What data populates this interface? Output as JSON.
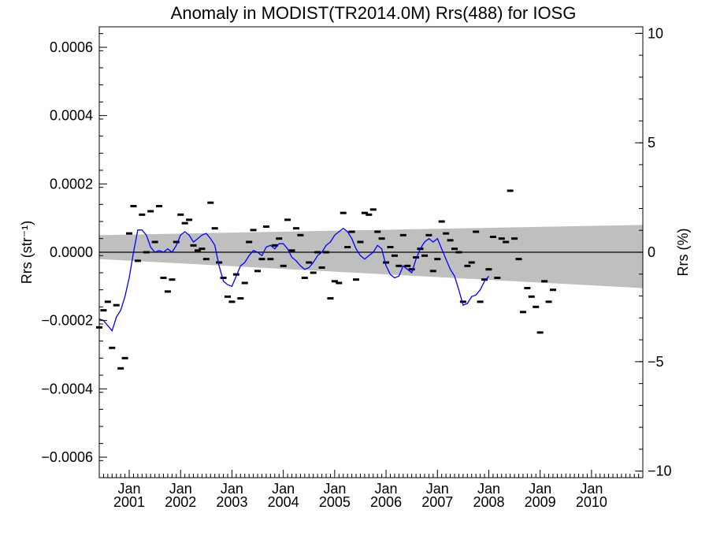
{
  "chart_data": {
    "type": "scatter",
    "title": "Anomaly in MODIST(TR2014.0M) Rrs(488) for IOSG",
    "ylabel_left": "Rrs (str⁻¹)",
    "ylabel_right": "Rrs (%)",
    "ylim": [
      -0.00066,
      0.00066
    ],
    "ylim_right": [
      -10.3,
      10.3
    ],
    "xlim": [
      "2000-06-01",
      "2010-12-31"
    ],
    "grid": false,
    "y_ticks_left": [
      -0.0006,
      -0.0004,
      -0.0002,
      0.0,
      0.0002,
      0.0004,
      0.0006
    ],
    "y_tick_labels_left": [
      "−0.0006",
      "−0.0004",
      "−0.0002",
      "0.0000",
      "0.0002",
      "0.0004",
      "0.0006"
    ],
    "y_ticks_right": [
      -10,
      -5,
      0,
      5,
      10
    ],
    "y_tick_labels_right": [
      "−10",
      "−5",
      "0",
      "5",
      "10"
    ],
    "x_ticks": [
      {
        "month": "Jan",
        "year": "2001",
        "date": "2001-01-01"
      },
      {
        "month": "Jan",
        "year": "2002",
        "date": "2002-01-01"
      },
      {
        "month": "Jan",
        "year": "2003",
        "date": "2003-01-01"
      },
      {
        "month": "Jan",
        "year": "2004",
        "date": "2004-01-01"
      },
      {
        "month": "Jan",
        "year": "2005",
        "date": "2005-01-01"
      },
      {
        "month": "Jan",
        "year": "2006",
        "date": "2006-01-01"
      },
      {
        "month": "Jan",
        "year": "2007",
        "date": "2007-01-01"
      },
      {
        "month": "Jan",
        "year": "2008",
        "date": "2008-01-01"
      },
      {
        "month": "Jan",
        "year": "2009",
        "date": "2009-01-01"
      },
      {
        "month": "Jan",
        "year": "2010",
        "date": "2010-01-01"
      }
    ],
    "band": {
      "x": [
        "2000-06-01",
        "2010-12-31"
      ],
      "upper": [
        5e-05,
        8e-05
      ],
      "lower": [
        -2e-05,
        -0.000105
      ],
      "color": "#bfbfbf"
    },
    "zero_line": 0,
    "series": [
      {
        "style": "marker",
        "color": "#000000",
        "points": [
          [
            "2000-06",
            -0.00022
          ],
          [
            "2000-07",
            -0.00017
          ],
          [
            "2000-08",
            -0.000145
          ],
          [
            "2000-09",
            -0.00028
          ],
          [
            "2000-10",
            -0.000155
          ],
          [
            "2000-11",
            -0.00034
          ],
          [
            "2000-12",
            -0.00031
          ],
          [
            "2001-01",
            5.5e-05
          ],
          [
            "2001-02",
            0.000135
          ],
          [
            "2001-03",
            -2.5e-05
          ],
          [
            "2001-04",
            0.00011
          ],
          [
            "2001-05",
            0.0
          ],
          [
            "2001-06",
            0.00012
          ],
          [
            "2001-07",
            3e-05
          ],
          [
            "2001-08",
            0.000135
          ],
          [
            "2001-09",
            -7.5e-05
          ],
          [
            "2001-10",
            -0.000115
          ],
          [
            "2001-11",
            -8e-05
          ],
          [
            "2001-12",
            3e-05
          ],
          [
            "2002-01",
            0.00011
          ],
          [
            "2002-02",
            8.5e-05
          ],
          [
            "2002-03",
            9.5e-05
          ],
          [
            "2002-04",
            2e-05
          ],
          [
            "2002-05",
            5e-06
          ],
          [
            "2002-06",
            1e-05
          ],
          [
            "2002-07",
            -2e-05
          ],
          [
            "2002-08",
            0.000145
          ],
          [
            "2002-09",
            7e-05
          ],
          [
            "2002-10",
            -3e-05
          ],
          [
            "2002-11",
            -7.5e-05
          ],
          [
            "2002-12",
            -0.00013
          ],
          [
            "2003-01",
            -0.000145
          ],
          [
            "2003-02",
            -6.5e-05
          ],
          [
            "2003-03",
            -0.000135
          ],
          [
            "2003-04",
            -9e-05
          ],
          [
            "2003-05",
            3e-05
          ],
          [
            "2003-06",
            6.5e-05
          ],
          [
            "2003-07",
            -5.5e-05
          ],
          [
            "2003-08",
            -2e-05
          ],
          [
            "2003-09",
            7.5e-05
          ],
          [
            "2003-10",
            -2e-05
          ],
          [
            "2003-11",
            2e-05
          ],
          [
            "2003-12",
            4e-05
          ],
          [
            "2004-01",
            -4e-05
          ],
          [
            "2004-02",
            9.5e-05
          ],
          [
            "2004-03",
            5e-06
          ],
          [
            "2004-04",
            7e-05
          ],
          [
            "2004-05",
            5e-05
          ],
          [
            "2004-06",
            -7.5e-05
          ],
          [
            "2004-07",
            -3e-05
          ],
          [
            "2004-08",
            -6e-05
          ],
          [
            "2004-09",
            0.0
          ],
          [
            "2004-10",
            -4.5e-05
          ],
          [
            "2004-11",
            0.0
          ],
          [
            "2004-12",
            -0.000135
          ],
          [
            "2005-01",
            -8.5e-05
          ],
          [
            "2005-02",
            -9e-05
          ],
          [
            "2005-03",
            0.000115
          ],
          [
            "2005-04",
            1.5e-05
          ],
          [
            "2005-05",
            6e-05
          ],
          [
            "2005-06",
            -8e-05
          ],
          [
            "2005-07",
            3e-05
          ],
          [
            "2005-08",
            0.000115
          ],
          [
            "2005-09",
            0.00011
          ],
          [
            "2005-10",
            0.000125
          ],
          [
            "2005-11",
            6e-05
          ],
          [
            "2005-12",
            4e-05
          ],
          [
            "2006-01",
            -3e-05
          ],
          [
            "2006-02",
            1.5e-05
          ],
          [
            "2006-03",
            -1e-05
          ],
          [
            "2006-04",
            -4e-05
          ],
          [
            "2006-05",
            5e-05
          ],
          [
            "2006-06",
            -4e-05
          ],
          [
            "2006-07",
            -5e-05
          ],
          [
            "2006-08",
            -1.5e-05
          ],
          [
            "2006-09",
            1e-05
          ],
          [
            "2006-10",
            -1e-05
          ],
          [
            "2006-11",
            5e-05
          ],
          [
            "2006-12",
            -5.5e-05
          ],
          [
            "2007-01",
            -2e-05
          ],
          [
            "2007-02",
            9e-05
          ],
          [
            "2007-03",
            5.5e-05
          ],
          [
            "2007-04",
            3.5e-05
          ],
          [
            "2007-05",
            1e-05
          ],
          [
            "2007-06",
            0.0
          ],
          [
            "2007-07",
            -0.000145
          ],
          [
            "2007-08",
            -4e-05
          ],
          [
            "2007-09",
            -3e-05
          ],
          [
            "2007-10",
            6e-05
          ],
          [
            "2007-11",
            -0.000145
          ],
          [
            "2007-12",
            -8e-05
          ],
          [
            "2008-01",
            -5e-05
          ],
          [
            "2008-02",
            4.5e-05
          ],
          [
            "2008-03",
            -7.5e-05
          ],
          [
            "2008-04",
            4e-05
          ],
          [
            "2008-05",
            3e-05
          ],
          [
            "2008-06",
            0.00018
          ],
          [
            "2008-07",
            4e-05
          ],
          [
            "2008-08",
            -2e-05
          ],
          [
            "2008-09",
            -0.000175
          ],
          [
            "2008-10",
            -0.000105
          ],
          [
            "2008-11",
            -0.00013
          ],
          [
            "2008-12",
            -0.00016
          ],
          [
            "2009-01",
            -0.000235
          ],
          [
            "2009-02",
            -8.5e-05
          ],
          [
            "2009-03",
            -0.000145
          ],
          [
            "2009-04",
            -0.00011
          ]
        ]
      },
      {
        "style": "line",
        "color": "#0000ff",
        "points": [
          [
            "2000-06",
            -0.000195
          ],
          [
            "2000-07",
            -0.0002
          ],
          [
            "2000-08",
            -0.000215
          ],
          [
            "2000-09",
            -0.00023
          ],
          [
            "2000-10",
            -0.00019
          ],
          [
            "2000-11",
            -0.00017
          ],
          [
            "2000-12",
            -0.00013
          ],
          [
            "2001-01",
            -7.5e-05
          ],
          [
            "2001-02",
            0.0
          ],
          [
            "2001-03",
            6.5e-05
          ],
          [
            "2001-04",
            6.5e-05
          ],
          [
            "2001-05",
            5e-05
          ],
          [
            "2001-06",
            1.5e-05
          ],
          [
            "2001-07",
            0.0
          ],
          [
            "2001-08",
            5e-06
          ],
          [
            "2001-09",
            0.0
          ],
          [
            "2001-10",
            1e-05
          ],
          [
            "2001-11",
            0.0
          ],
          [
            "2001-12",
            2e-05
          ],
          [
            "2002-01",
            5e-05
          ],
          [
            "2002-02",
            6e-05
          ],
          [
            "2002-03",
            5e-05
          ],
          [
            "2002-04",
            3e-05
          ],
          [
            "2002-05",
            4e-05
          ],
          [
            "2002-06",
            5e-05
          ],
          [
            "2002-07",
            5.5e-05
          ],
          [
            "2002-08",
            4e-05
          ],
          [
            "2002-09",
            2e-05
          ],
          [
            "2002-10",
            -4e-05
          ],
          [
            "2002-11",
            -8.5e-05
          ],
          [
            "2002-12",
            -9.5e-05
          ],
          [
            "2003-01",
            -0.0001
          ],
          [
            "2003-02",
            -7e-05
          ],
          [
            "2003-03",
            -4e-05
          ],
          [
            "2003-04",
            -3e-05
          ],
          [
            "2003-05",
            -1e-05
          ],
          [
            "2003-06",
            5e-06
          ],
          [
            "2003-07",
            0.0
          ],
          [
            "2003-08",
            -1e-05
          ],
          [
            "2003-09",
            1.5e-05
          ],
          [
            "2003-10",
            2e-05
          ],
          [
            "2003-11",
            1e-05
          ],
          [
            "2003-12",
            2.5e-05
          ],
          [
            "2004-01",
            2.5e-05
          ],
          [
            "2004-02",
            1e-05
          ],
          [
            "2004-03",
            -1.5e-05
          ],
          [
            "2004-04",
            -2.5e-05
          ],
          [
            "2004-05",
            -4e-05
          ],
          [
            "2004-06",
            -5e-05
          ],
          [
            "2004-07",
            -4.5e-05
          ],
          [
            "2004-08",
            -3e-05
          ],
          [
            "2004-09",
            -1e-05
          ],
          [
            "2004-10",
            0.0
          ],
          [
            "2004-11",
            2e-05
          ],
          [
            "2004-12",
            3e-05
          ],
          [
            "2005-01",
            5e-05
          ],
          [
            "2005-02",
            6e-05
          ],
          [
            "2005-03",
            7e-05
          ],
          [
            "2005-04",
            6e-05
          ],
          [
            "2005-05",
            4e-05
          ],
          [
            "2005-06",
            1e-05
          ],
          [
            "2005-07",
            -1e-05
          ],
          [
            "2005-08",
            -2e-05
          ],
          [
            "2005-09",
            -1e-05
          ],
          [
            "2005-10",
            0.0
          ],
          [
            "2005-11",
            2e-05
          ],
          [
            "2005-12",
            1e-05
          ],
          [
            "2006-01",
            -4e-05
          ],
          [
            "2006-02",
            -6.5e-05
          ],
          [
            "2006-03",
            -7.5e-05
          ],
          [
            "2006-04",
            -7e-05
          ],
          [
            "2006-05",
            -4e-05
          ],
          [
            "2006-06",
            -5e-05
          ],
          [
            "2006-07",
            -6e-05
          ],
          [
            "2006-08",
            -2e-05
          ],
          [
            "2006-09",
            1e-05
          ],
          [
            "2006-10",
            3e-05
          ],
          [
            "2006-11",
            4e-05
          ],
          [
            "2006-12",
            3e-05
          ],
          [
            "2007-01",
            4e-05
          ],
          [
            "2007-02",
            1e-05
          ],
          [
            "2007-03",
            -2e-05
          ],
          [
            "2007-04",
            -5e-05
          ],
          [
            "2007-05",
            -7e-05
          ],
          [
            "2007-06",
            -0.00011
          ],
          [
            "2007-07",
            -0.000155
          ],
          [
            "2007-08",
            -0.00015
          ],
          [
            "2007-09",
            -0.00013
          ],
          [
            "2007-10",
            -0.000125
          ],
          [
            "2007-11",
            -0.00011
          ],
          [
            "2007-12",
            -8.5e-05
          ],
          [
            "2008-01",
            -7e-05
          ]
        ]
      }
    ]
  }
}
